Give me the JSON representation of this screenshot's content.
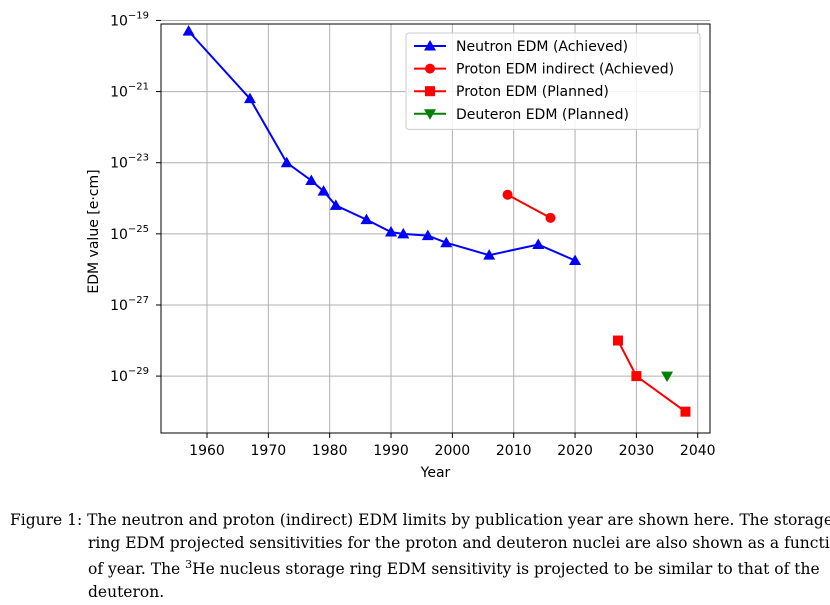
{
  "chart_data": {
    "type": "line",
    "xlabel": "Year",
    "ylabel": "EDM value [e·cm]",
    "yscale": "log",
    "xlim": [
      1952.5,
      2042
    ],
    "ylim_exponents": [
      -30.6,
      -19.1
    ],
    "grid": true,
    "legend_location": "top-right",
    "x_ticks": [
      1960,
      1970,
      1980,
      1990,
      2000,
      2010,
      2020,
      2030,
      2040
    ],
    "y_ticks": [
      {
        "base": "10",
        "exp": "−19",
        "value_exp": -19
      },
      {
        "base": "10",
        "exp": "−21",
        "value_exp": -21
      },
      {
        "base": "10",
        "exp": "−23",
        "value_exp": -23
      },
      {
        "base": "10",
        "exp": "−25",
        "value_exp": -25
      },
      {
        "base": "10",
        "exp": "−27",
        "value_exp": -27
      },
      {
        "base": "10",
        "exp": "−29",
        "value_exp": -29
      }
    ],
    "series": [
      {
        "name": "Neutron EDM (Achieved)",
        "color": "#0000ff",
        "marker": "triangle-up",
        "line": true,
        "x": [
          1957,
          1967,
          1973,
          1977,
          1979,
          1981,
          1986,
          1990,
          1992,
          1996,
          1999,
          2006,
          2014,
          2020
        ],
        "log10_y": [
          -19.3,
          -21.2,
          -23.0,
          -23.5,
          -23.8,
          -24.2,
          -24.6,
          -24.95,
          -25.0,
          -25.05,
          -25.25,
          -25.6,
          -25.3,
          -25.75
        ]
      },
      {
        "name": "Proton EDM indirect (Achieved)",
        "color": "#ff0000",
        "marker": "circle",
        "line": true,
        "x": [
          2009,
          2016
        ],
        "log10_y": [
          -23.9,
          -24.55
        ]
      },
      {
        "name": "Proton EDM (Planned)",
        "color": "#ff0000",
        "marker": "square",
        "line": true,
        "x": [
          2027,
          2030,
          2038
        ],
        "log10_y": [
          -28.0,
          -29.0,
          -30.0
        ]
      },
      {
        "name": "Deuteron EDM (Planned)",
        "color": "#008000",
        "marker": "triangle-down",
        "line": false,
        "x": [
          2035
        ],
        "log10_y": [
          -29.0
        ]
      }
    ]
  },
  "caption": {
    "label": "Figure 1:",
    "line1": "The neutron and proton (indirect) EDM limits by publication year are shown here. The storage",
    "line2": "ring EDM projected sensitivities for the proton and deuteron nuclei are also shown as a function",
    "line3_pre": "of year. The ",
    "line3_sup": "3",
    "line3_post": "He nucleus storage ring EDM sensitivity is projected to be similar to that of the",
    "line4": "deuteron."
  }
}
